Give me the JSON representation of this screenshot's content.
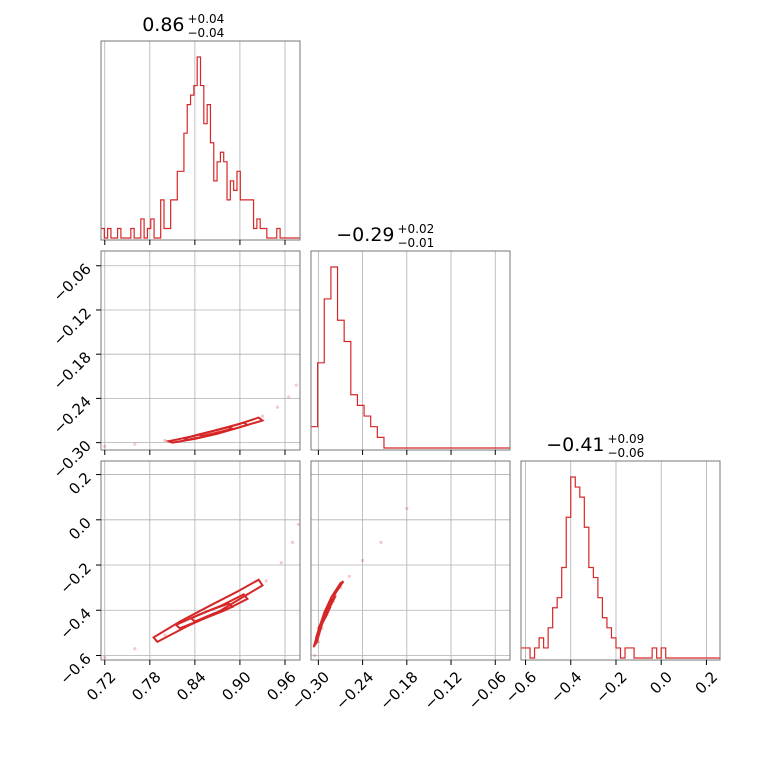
{
  "chart_data": {
    "type": "corner",
    "line_color": "#d62728",
    "grid": true,
    "parameters": [
      {
        "title_value": "0.86",
        "title_plus": "+0.04",
        "title_minus": "−0.04",
        "range": [
          0.715,
          0.98
        ],
        "ticks": [
          0.72,
          0.78,
          0.84,
          0.9,
          0.96
        ],
        "tick_labels": [
          "0.72",
          "0.78",
          "0.84",
          "0.90",
          "0.96"
        ]
      },
      {
        "title_value": "−0.29",
        "title_plus": "+0.02",
        "title_minus": "−0.01",
        "range": [
          -0.31,
          -0.04
        ],
        "ticks": [
          -0.3,
          -0.24,
          -0.18,
          -0.12,
          -0.06
        ],
        "tick_labels": [
          "−0.30",
          "−0.24",
          "−0.18",
          "−0.12",
          "−0.06"
        ]
      },
      {
        "title_value": "−0.41",
        "title_plus": "+0.09",
        "title_minus": "−0.06",
        "range": [
          -0.62,
          0.26
        ],
        "ticks": [
          -0.6,
          -0.4,
          -0.2,
          0.0,
          0.2
        ],
        "tick_labels": [
          "−0.6",
          "−0.4",
          "−0.2",
          "0.0",
          "0.2"
        ]
      }
    ],
    "histograms": [
      {
        "param": 0,
        "bin_edges": [
          0.715,
          0.98
        ],
        "counts": [
          1,
          0,
          1,
          0,
          0,
          1,
          0,
          0,
          0,
          1,
          0,
          0,
          2,
          0,
          1,
          2,
          0,
          0,
          4,
          1,
          1,
          4,
          4,
          7,
          7,
          11,
          14,
          15,
          16,
          19,
          16,
          12,
          14,
          10,
          6,
          8,
          9,
          8,
          4,
          6,
          5,
          7,
          4,
          4,
          4,
          4,
          1,
          2,
          1,
          1,
          0,
          0,
          0,
          1,
          0,
          0,
          0,
          0,
          0,
          0
        ]
      },
      {
        "param": 1,
        "bin_edges": [
          -0.31,
          -0.04
        ],
        "counts": [
          2,
          8,
          14,
          17,
          12,
          10,
          5,
          4,
          3,
          2,
          1,
          0,
          0,
          0,
          0,
          0,
          0,
          0,
          0,
          0,
          0,
          0,
          0,
          0,
          0,
          0,
          0,
          0,
          0,
          0
        ]
      },
      {
        "param": 2,
        "bin_edges": [
          -0.62,
          0.26
        ],
        "counts": [
          1,
          1,
          0,
          1,
          2,
          1,
          3,
          5,
          6,
          9,
          14,
          18,
          17,
          16,
          13,
          9,
          8,
          6,
          4,
          3,
          2,
          1,
          0,
          1,
          1,
          0,
          0,
          0,
          0,
          1,
          0,
          1,
          0,
          0,
          0,
          0,
          0,
          0,
          0,
          0,
          0,
          0,
          0,
          0
        ]
      }
    ],
    "pairs": [
      {
        "x_param": 0,
        "y_param": 1,
        "points": [
          [
            0.72,
            -0.305
          ],
          [
            0.76,
            -0.302
          ],
          [
            0.8,
            -0.297
          ],
          [
            0.84,
            -0.291
          ],
          [
            0.87,
            -0.284
          ],
          [
            0.9,
            -0.275
          ],
          [
            0.93,
            -0.264
          ],
          [
            0.95,
            -0.252
          ],
          [
            0.965,
            -0.238
          ],
          [
            0.975,
            -0.222
          ]
        ],
        "contours": [
          [
            [
              0.81,
              -0.3
            ],
            [
              0.84,
              -0.295
            ],
            [
              0.87,
              -0.288
            ],
            [
              0.9,
              -0.279
            ],
            [
              0.93,
              -0.27
            ],
            [
              0.925,
              -0.266
            ],
            [
              0.895,
              -0.276
            ],
            [
              0.865,
              -0.284
            ],
            [
              0.835,
              -0.292
            ],
            [
              0.805,
              -0.298
            ],
            [
              0.81,
              -0.3
            ]
          ],
          [
            [
              0.83,
              -0.296
            ],
            [
              0.86,
              -0.29
            ],
            [
              0.89,
              -0.282
            ],
            [
              0.91,
              -0.276
            ],
            [
              0.905,
              -0.273
            ],
            [
              0.88,
              -0.28
            ],
            [
              0.85,
              -0.288
            ],
            [
              0.825,
              -0.294
            ],
            [
              0.83,
              -0.296
            ]
          ],
          [
            [
              0.85,
              -0.291
            ],
            [
              0.875,
              -0.285
            ],
            [
              0.89,
              -0.281
            ],
            [
              0.885,
              -0.279
            ],
            [
              0.865,
              -0.284
            ],
            [
              0.845,
              -0.289
            ],
            [
              0.85,
              -0.291
            ]
          ]
        ]
      },
      {
        "x_param": 0,
        "y_param": 2,
        "points": [
          [
            0.72,
            -0.61
          ],
          [
            0.76,
            -0.57
          ],
          [
            0.8,
            -0.51
          ],
          [
            0.84,
            -0.45
          ],
          [
            0.88,
            -0.39
          ],
          [
            0.91,
            -0.33
          ],
          [
            0.935,
            -0.27
          ],
          [
            0.955,
            -0.19
          ],
          [
            0.97,
            -0.1
          ],
          [
            0.978,
            -0.02
          ]
        ],
        "contours": [
          [
            [
              0.79,
              -0.54
            ],
            [
              0.83,
              -0.47
            ],
            [
              0.87,
              -0.41
            ],
            [
              0.9,
              -0.35
            ],
            [
              0.93,
              -0.29
            ],
            [
              0.925,
              -0.265
            ],
            [
              0.895,
              -0.32
            ],
            [
              0.86,
              -0.38
            ],
            [
              0.82,
              -0.45
            ],
            [
              0.785,
              -0.52
            ],
            [
              0.79,
              -0.54
            ]
          ],
          [
            [
              0.82,
              -0.48
            ],
            [
              0.85,
              -0.44
            ],
            [
              0.88,
              -0.4
            ],
            [
              0.91,
              -0.35
            ],
            [
              0.905,
              -0.33
            ],
            [
              0.875,
              -0.38
            ],
            [
              0.845,
              -0.42
            ],
            [
              0.815,
              -0.465
            ],
            [
              0.82,
              -0.48
            ]
          ],
          [
            [
              0.84,
              -0.45
            ],
            [
              0.865,
              -0.415
            ],
            [
              0.89,
              -0.385
            ],
            [
              0.885,
              -0.37
            ],
            [
              0.86,
              -0.4
            ],
            [
              0.835,
              -0.435
            ],
            [
              0.84,
              -0.45
            ]
          ]
        ]
      },
      {
        "x_param": 1,
        "y_param": 2,
        "points": [
          [
            -0.305,
            -0.6
          ],
          [
            -0.3,
            -0.54
          ],
          [
            -0.295,
            -0.48
          ],
          [
            -0.288,
            -0.42
          ],
          [
            -0.28,
            -0.36
          ],
          [
            -0.27,
            -0.3
          ],
          [
            -0.258,
            -0.25
          ],
          [
            -0.24,
            -0.18
          ],
          [
            -0.215,
            -0.1
          ],
          [
            -0.18,
            0.05
          ]
        ],
        "contours": [
          [
            [
              -0.306,
              -0.56
            ],
            [
              -0.3,
              -0.49
            ],
            [
              -0.292,
              -0.41
            ],
            [
              -0.282,
              -0.34
            ],
            [
              -0.27,
              -0.28
            ],
            [
              -0.266,
              -0.272
            ],
            [
              -0.276,
              -0.32
            ],
            [
              -0.286,
              -0.39
            ],
            [
              -0.295,
              -0.46
            ],
            [
              -0.302,
              -0.54
            ],
            [
              -0.306,
              -0.56
            ]
          ],
          [
            [
              -0.303,
              -0.52
            ],
            [
              -0.297,
              -0.46
            ],
            [
              -0.29,
              -0.4
            ],
            [
              -0.281,
              -0.35
            ],
            [
              -0.278,
              -0.345
            ],
            [
              -0.285,
              -0.39
            ],
            [
              -0.293,
              -0.445
            ],
            [
              -0.3,
              -0.505
            ],
            [
              -0.303,
              -0.52
            ]
          ],
          [
            [
              -0.3,
              -0.48
            ],
            [
              -0.294,
              -0.44
            ],
            [
              -0.288,
              -0.4
            ],
            [
              -0.285,
              -0.395
            ],
            [
              -0.29,
              -0.43
            ],
            [
              -0.297,
              -0.47
            ],
            [
              -0.3,
              -0.48
            ]
          ]
        ]
      }
    ]
  }
}
